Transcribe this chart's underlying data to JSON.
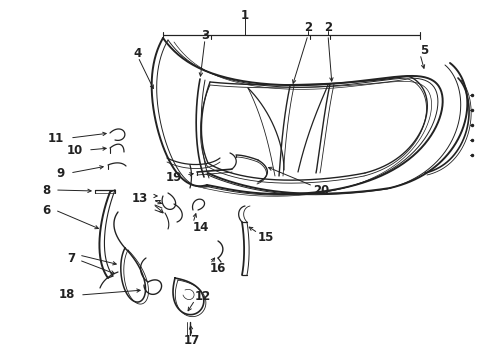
{
  "bg_color": "#ffffff",
  "line_color": "#222222",
  "fig_width": 4.9,
  "fig_height": 3.6,
  "dpi": 100,
  "text_labels": [
    [
      "1",
      245,
      9,
      "center"
    ],
    [
      "2",
      308,
      27,
      "center"
    ],
    [
      "2",
      328,
      27,
      "center"
    ],
    [
      "3",
      205,
      35,
      "center"
    ],
    [
      "4",
      138,
      53,
      "center"
    ],
    [
      "5",
      418,
      50,
      "left"
    ],
    [
      "6",
      50,
      210,
      "right"
    ],
    [
      "7",
      75,
      258,
      "right"
    ],
    [
      "8",
      50,
      190,
      "right"
    ],
    [
      "9",
      65,
      173,
      "right"
    ],
    [
      "10",
      83,
      150,
      "right"
    ],
    [
      "11",
      64,
      138,
      "right"
    ],
    [
      "12",
      193,
      297,
      "left"
    ],
    [
      "13",
      148,
      198,
      "right"
    ],
    [
      "14",
      193,
      227,
      "left"
    ],
    [
      "15",
      258,
      237,
      "left"
    ],
    [
      "16",
      210,
      268,
      "left"
    ],
    [
      "17",
      192,
      340,
      "center"
    ],
    [
      "18",
      75,
      295,
      "right"
    ],
    [
      "19",
      182,
      177,
      "right"
    ],
    [
      "20",
      313,
      190,
      "left"
    ]
  ]
}
